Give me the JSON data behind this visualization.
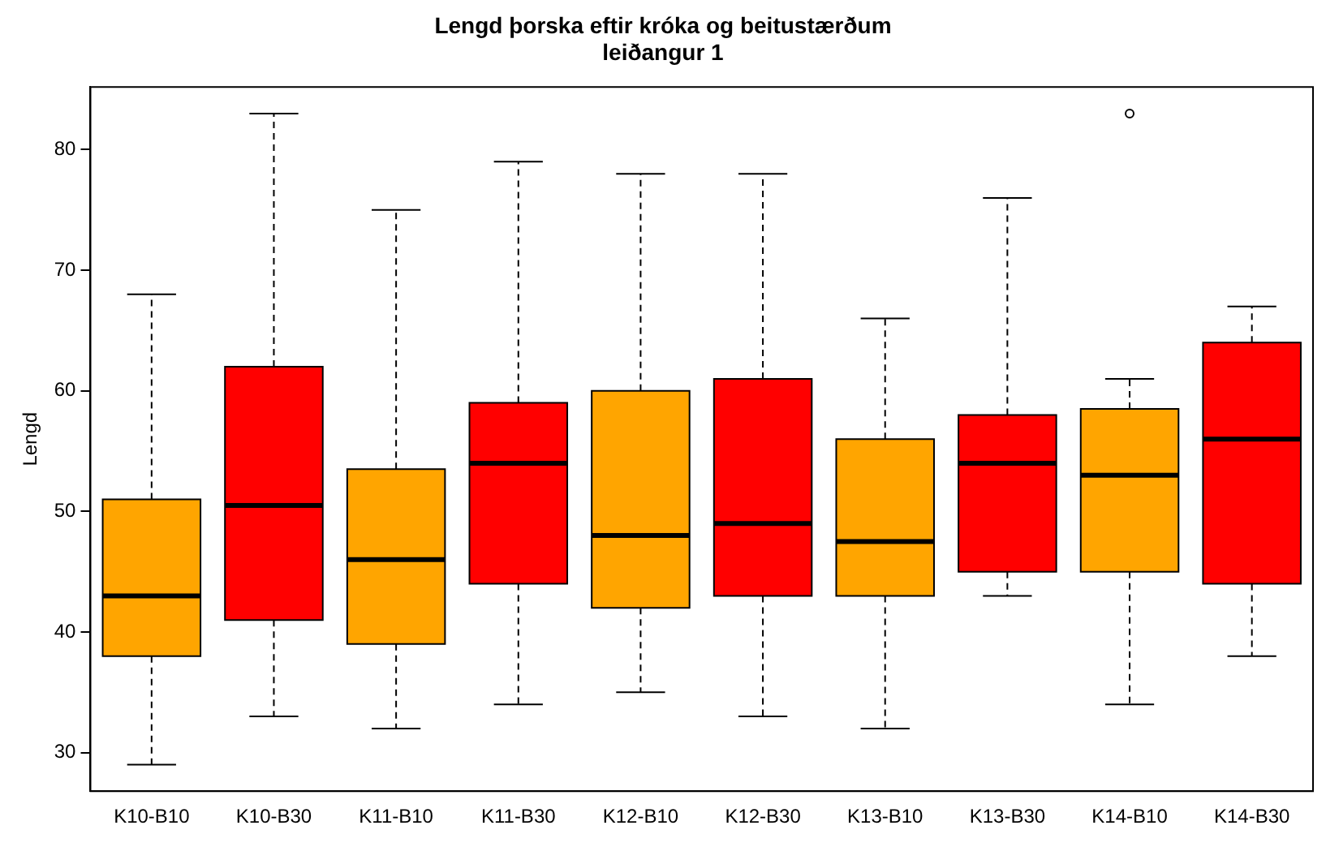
{
  "chart_data": {
    "type": "box",
    "title": "Lengd þorska eftir króka og beitustærðum\nleiðangur 1",
    "ylabel": "Lengd",
    "categories": [
      "K10-B10",
      "K10-B30",
      "K11-B10",
      "K11-B30",
      "K12-B10",
      "K12-B30",
      "K13-B10",
      "K13-B30",
      "K14-B10",
      "K14-B30"
    ],
    "colors": [
      "#ffa500",
      "#ff0000",
      "#ffa500",
      "#ff0000",
      "#ffa500",
      "#ff0000",
      "#ffa500",
      "#ff0000",
      "#ffa500",
      "#ff0000"
    ],
    "boxes": [
      {
        "low": 29,
        "q1": 38,
        "median": 43,
        "q3": 51,
        "high": 68
      },
      {
        "low": 33,
        "q1": 41,
        "median": 50.5,
        "q3": 62,
        "high": 83
      },
      {
        "low": 32,
        "q1": 39,
        "median": 46,
        "q3": 53.5,
        "high": 75
      },
      {
        "low": 34,
        "q1": 44,
        "median": 54,
        "q3": 59,
        "high": 79
      },
      {
        "low": 35,
        "q1": 42,
        "median": 48,
        "q3": 60,
        "high": 78
      },
      {
        "low": 33,
        "q1": 43,
        "median": 49,
        "q3": 61,
        "high": 78
      },
      {
        "low": 32,
        "q1": 43,
        "median": 47.5,
        "q3": 56,
        "high": 66
      },
      {
        "low": 43,
        "q1": 45,
        "median": 54,
        "q3": 58,
        "high": 76
      },
      {
        "low": 34,
        "q1": 45,
        "median": 53,
        "q3": 58.5,
        "high": 61,
        "outliers": [
          83
        ]
      },
      {
        "low": 38,
        "q1": 44,
        "median": 56,
        "q3": 64,
        "high": 67
      }
    ],
    "ylim": [
      26.8,
      85.2
    ],
    "yticks": [
      30,
      40,
      50,
      60,
      70,
      80
    ],
    "grid": false,
    "legend": false
  }
}
